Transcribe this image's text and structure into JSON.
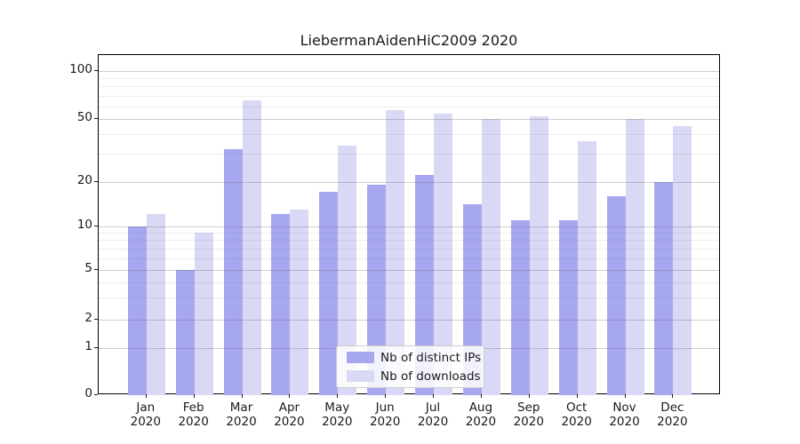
{
  "title": "LiebermanAidenHiC2009 2020",
  "chart_data": {
    "type": "bar",
    "title": "LiebermanAidenHiC2009 2020",
    "categories": [
      "Jan 2020",
      "Feb 2020",
      "Mar 2020",
      "Apr 2020",
      "May 2020",
      "Jun 2020",
      "Jul 2020",
      "Aug 2020",
      "Sep 2020",
      "Oct 2020",
      "Nov 2020",
      "Dec 2020"
    ],
    "x": {
      "months": [
        "Jan",
        "Feb",
        "Mar",
        "Apr",
        "May",
        "Jun",
        "Jul",
        "Aug",
        "Sep",
        "Oct",
        "Nov",
        "Dec"
      ],
      "year": "2020"
    },
    "series": [
      {
        "name": "Nb of distinct IPs",
        "color": "#a7a7f0",
        "values": [
          10,
          5,
          32,
          12,
          17,
          19,
          22,
          14,
          11,
          11,
          16,
          20
        ]
      },
      {
        "name": "Nb of downloads",
        "color": "#d9d9f6",
        "values": [
          12,
          9,
          65,
          13,
          34,
          57,
          54,
          50,
          52,
          36,
          50,
          45
        ]
      }
    ],
    "yscale": "symlog",
    "y_axis": {
      "tick_labels": [
        "0",
        "1",
        "2",
        "5",
        "10",
        "20",
        "50",
        "100"
      ],
      "tick_values": [
        0,
        1,
        2,
        5,
        10,
        20,
        50,
        100
      ],
      "minor_tick_values": [
        3,
        4,
        6,
        7,
        8,
        9,
        30,
        40,
        60,
        70,
        80,
        90
      ],
      "ylim": [
        0,
        126
      ]
    },
    "grid": true,
    "legend": {
      "position": "lower-center",
      "items": [
        "Nb of distinct IPs",
        "Nb of downloads"
      ]
    }
  },
  "colors": {
    "series_dark": "#a7a7f0",
    "series_light": "#d9d9f6",
    "spine": "#000000",
    "text": "#1a1a1a",
    "legend_border": "#cccccc"
  }
}
